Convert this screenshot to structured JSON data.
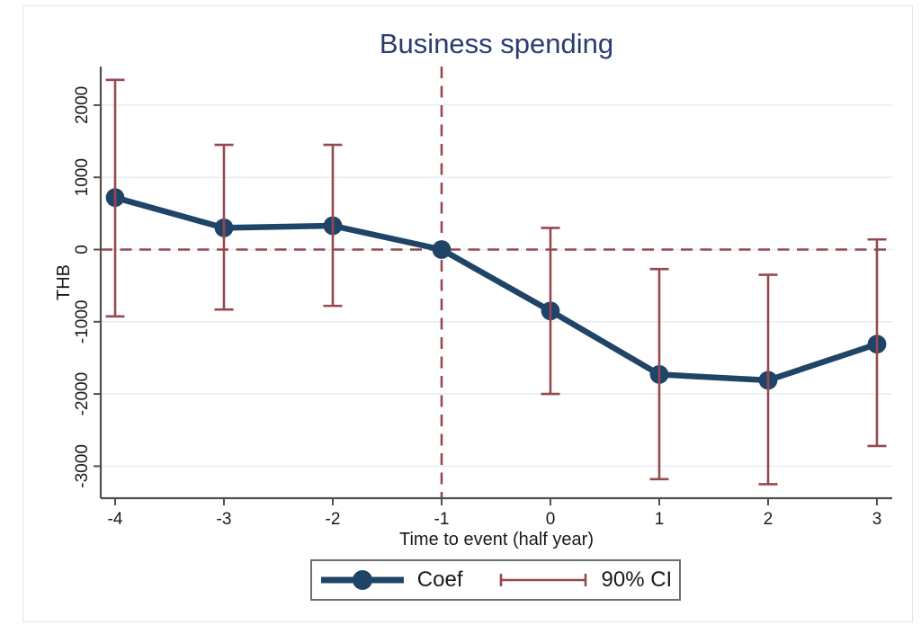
{
  "figure": {
    "title": "Business spending",
    "x_axis": {
      "label": "Time to event (half year)",
      "tick_labels": [
        "-4",
        "-3",
        "-2",
        "-1",
        "0",
        "1",
        "2",
        "3"
      ]
    },
    "y_axis": {
      "label": "THB",
      "tick_labels": [
        "2000",
        "1000",
        "0",
        "-1000",
        "-2000",
        "-3000"
      ]
    },
    "legend": {
      "coef": "Coef",
      "ci": "90% CI"
    }
  },
  "chart_data": {
    "type": "line",
    "title": "Business spending",
    "xlabel": "Time to event (half year)",
    "ylabel": "THB",
    "x": [
      -4,
      -3,
      -2,
      -1,
      0,
      1,
      2,
      3
    ],
    "series": [
      {
        "name": "Coef",
        "values": [
          720,
          300,
          330,
          0,
          -850,
          -1730,
          -1810,
          -1310
        ]
      },
      {
        "name": "90% CI lower",
        "values": [
          -925,
          -830,
          -780,
          null,
          -2000,
          -3180,
          -3250,
          -2720
        ]
      },
      {
        "name": "90% CI upper",
        "values": [
          2350,
          1450,
          1450,
          null,
          300,
          -270,
          -350,
          140
        ]
      }
    ],
    "x_ticks": [
      -4,
      -3,
      -2,
      -1,
      0,
      1,
      2,
      3
    ],
    "y_ticks": [
      2000,
      1000,
      0,
      -1000,
      -2000,
      -3000
    ],
    "reference_lines": {
      "horizontal_at_y": 0,
      "vertical_at_x": -1
    },
    "ylim": [
      -3440,
      2530
    ],
    "xlim": [
      -4.15,
      3.15
    ],
    "grid": true,
    "legend_position": "bottom",
    "marker": "circle"
  },
  "colors": {
    "coef_line": "#1f4467",
    "ci_bar": "#96494d",
    "title": "#2b3c6f",
    "grid": "#e4eef0",
    "axis": "#4f4f4f",
    "text": "#1a1a1a",
    "figure_border": "#dde7ea",
    "legend_border": "#6e6e6e"
  }
}
